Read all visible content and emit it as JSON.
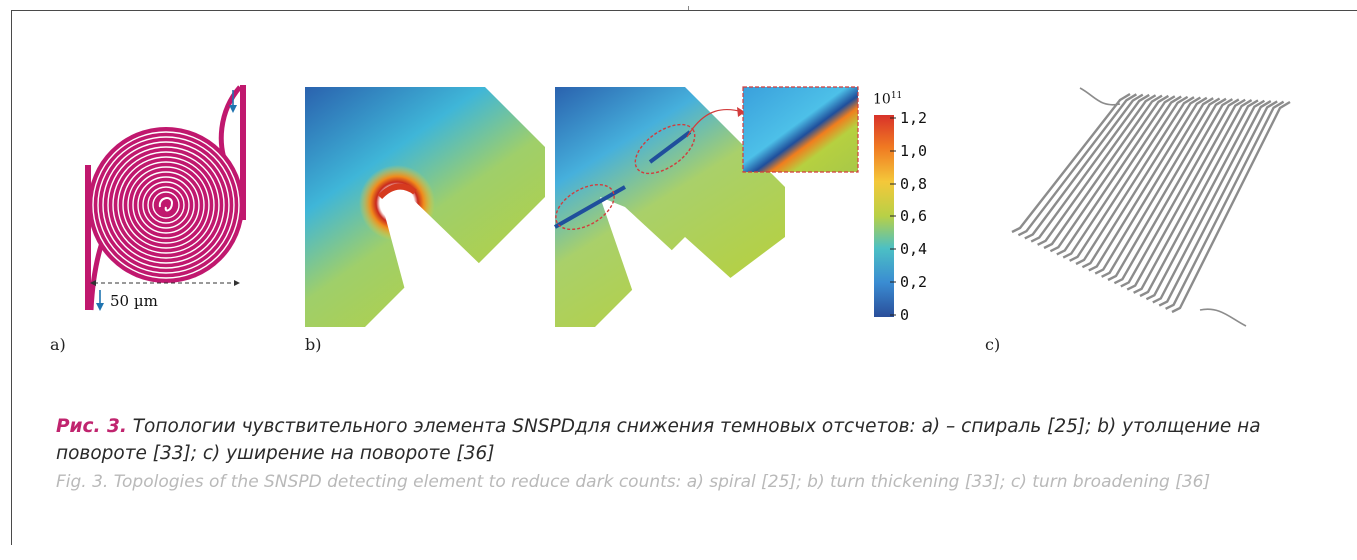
{
  "panels": {
    "a": {
      "label": "a)",
      "scale_label": "50 µm"
    },
    "b": {
      "label": "b)"
    },
    "c": {
      "label": "c)"
    }
  },
  "colorbar": {
    "exponent_base": "10",
    "exponent_power": "11",
    "ticks": [
      "1,2",
      "1,0",
      "0,8",
      "0,6",
      "0,4",
      "0,2",
      "0"
    ]
  },
  "caption_ru": {
    "fig_label": "Рис. 3.",
    "text": " Топологии чувствительного элемента SNSPDдля снижения темновых отсчетов: a) – спираль [25]; b) утолщение на повороте [33]; c) уширение на повороте [36]"
  },
  "caption_en": {
    "fig_label": "Fig. 3.",
    "text": " Topologies of the SNSPD detecting element to reduce dark counts: a) spiral [25]; b) turn thickening [33]; c) turn broadening [36]"
  },
  "colors": {
    "spiral": "#c0186e",
    "arrow": "#1f74b0",
    "fig_label_ru": "#c0246e",
    "caption_en": "#b9b9b9",
    "meander": "#8c8c8c"
  }
}
